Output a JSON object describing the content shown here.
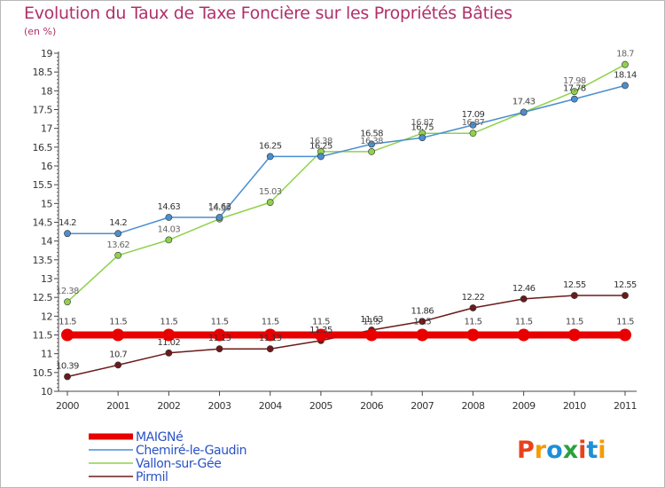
{
  "title": "Evolution du Taux de Taxe Foncière sur les Propriétés Bâties",
  "unit_label": "(en %)",
  "logo": {
    "text": "Proxiti",
    "colors": [
      "#e8421c",
      "#f59c00",
      "#1d8fd6",
      "#2aa13e",
      "#e8421c",
      "#1d8fd6",
      "#f59c00"
    ]
  },
  "chart_data": {
    "type": "line",
    "title": "Evolution du Taux de Taxe Foncière sur les Propriétés Bâties",
    "ylabel": "(en %)",
    "xlabel": "",
    "x": [
      "2000",
      "2001",
      "2002",
      "2003",
      "2004",
      "2005",
      "2006",
      "2007",
      "2008",
      "2009",
      "2010",
      "2011"
    ],
    "ylim": [
      10,
      19
    ],
    "yticks": [
      "10",
      "10.5",
      "11",
      "11.5",
      "12",
      "12.5",
      "13",
      "13.5",
      "14",
      "14.5",
      "15",
      "15.5",
      "16",
      "16.5",
      "17",
      "17.5",
      "18",
      "18.5",
      "19"
    ],
    "grid": false,
    "legend": "bottom-left",
    "series": [
      {
        "name": "MAIGNé",
        "color": "#e80000",
        "values": [
          11.5,
          11.5,
          11.5,
          11.5,
          11.5,
          11.5,
          11.5,
          11.5,
          11.5,
          11.5,
          11.5,
          11.5
        ],
        "labels": [
          "11.5",
          "11.5",
          "11.5",
          "11.5",
          "11.5",
          "11.5",
          "11.5",
          "11.5",
          "11.5",
          "11.5",
          "11.5",
          "11.5"
        ]
      },
      {
        "name": "Chemiré-le-Gaudin",
        "color": "#4a8fcf",
        "values": [
          14.2,
          14.2,
          14.63,
          14.63,
          16.25,
          16.25,
          16.58,
          16.75,
          17.09,
          17.43,
          17.78,
          18.14
        ],
        "labels": [
          "14.2",
          "14.2",
          "14.63",
          "14.63",
          "16.25",
          "16.25",
          "16.58",
          "16.75",
          "17.09",
          "17.43",
          "17.78",
          "18.14"
        ]
      },
      {
        "name": "Vallon-sur-Gée",
        "color": "#8ed24c",
        "values": [
          12.38,
          13.62,
          14.03,
          14.59,
          15.03,
          16.38,
          16.38,
          16.87,
          16.87,
          17.43,
          17.98,
          18.7
        ],
        "labels": [
          "12.38",
          "13.62",
          "14.03",
          "14.59",
          "15.03",
          "16.38",
          "16.38",
          "16.87",
          "16.87",
          "17.43",
          "17.98",
          "18.7"
        ]
      },
      {
        "name": "Pirmil",
        "color": "#6b1a1a",
        "values": [
          10.39,
          10.7,
          11.02,
          11.13,
          11.13,
          11.35,
          11.63,
          11.86,
          12.22,
          12.46,
          12.55,
          12.55
        ],
        "labels": [
          "10.39",
          "10.7",
          "11.02",
          "11.13",
          "11.13",
          "11.35",
          "11.63",
          "11.86",
          "12.22",
          "12.46",
          "12.55",
          "12.55"
        ]
      }
    ]
  }
}
